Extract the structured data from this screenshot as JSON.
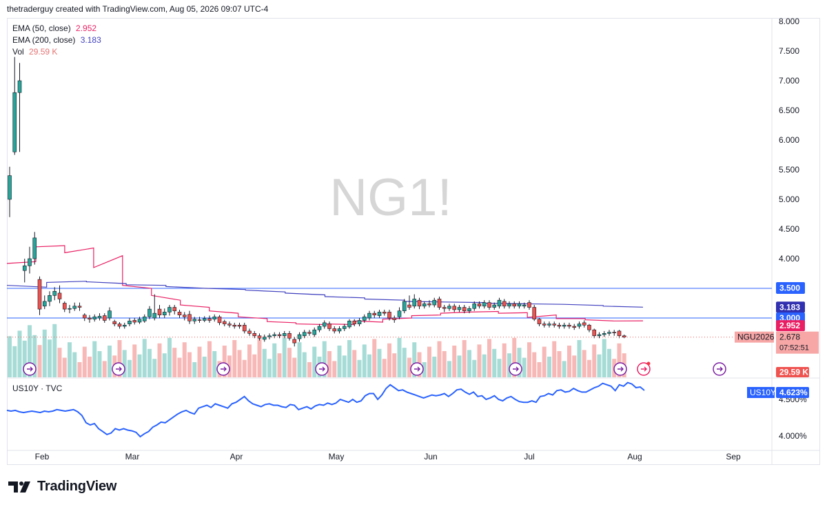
{
  "header": {
    "created_by": "thetraderguy created with TradingView.com, Aug 05, 2026 09:07 UTC-4"
  },
  "watermark": "NG1!",
  "legend": {
    "ema50": {
      "label": "EMA (50, close)",
      "value": "2.952",
      "color": "#e91e63"
    },
    "ema200": {
      "label": "EMA (200, close)",
      "value": "3.183",
      "color": "#3f3fbf"
    },
    "vol": {
      "label": "Vol",
      "value": "29.59 K",
      "color": "#e57373"
    }
  },
  "lower_pane": {
    "label": "US10Y · TVC",
    "tag": "US10Y",
    "value": "4.623%"
  },
  "price_tags": {
    "level_3500": "3.500",
    "ema200": "3.183",
    "level_3000": "3.000",
    "ema50": "2.952",
    "symbol": "NGU2026",
    "last": "2.678",
    "countdown": "07:52:51",
    "volume": "29.59 K"
  },
  "brand": {
    "name": "TradingView"
  },
  "colors": {
    "up": "#26a69a",
    "down": "#ef5350",
    "ema50": "#e91e63",
    "ema200": "#3f3fbf",
    "hline": "#2962ff",
    "us10y": "#2962ff",
    "event": "#7b1fa2"
  },
  "events": [
    "dividend",
    "dividend",
    "dividend",
    "dividend",
    "dividend",
    "dividend",
    "dividend",
    "earnings",
    "dividend"
  ],
  "chart_data": [
    {
      "type": "candlestick",
      "symbol": "NG1!",
      "y_ticks": [
        "8.000",
        "7.500",
        "7.000",
        "6.500",
        "6.000",
        "5.500",
        "5.000",
        "4.500",
        "4.000"
      ],
      "ylim": [
        2.1,
        8.1
      ],
      "x_ticks": [
        "Feb",
        "Mar",
        "Apr",
        "May",
        "Jun",
        "Jul",
        "Aug",
        "Sep"
      ],
      "horizontal_lines": [
        3.5,
        3.0
      ],
      "candles": [
        [
          5.0,
          5.4,
          5.55,
          4.7
        ],
        [
          5.8,
          6.8,
          7.4,
          5.75
        ],
        [
          6.8,
          7.0,
          7.3,
          5.8
        ],
        [
          3.8,
          3.88,
          4.0,
          3.6
        ],
        [
          3.88,
          4.0,
          4.2,
          3.75
        ],
        [
          4.0,
          4.35,
          4.45,
          3.9
        ],
        [
          3.65,
          3.15,
          3.7,
          3.05
        ],
        [
          3.2,
          3.28,
          3.38,
          3.15
        ],
        [
          3.28,
          3.38,
          3.45,
          3.2
        ],
        [
          3.38,
          3.45,
          3.52,
          3.3
        ],
        [
          3.42,
          3.32,
          3.55,
          3.25
        ],
        [
          3.25,
          3.15,
          3.28,
          3.1
        ],
        [
          3.15,
          3.16,
          3.22,
          3.08
        ],
        [
          3.16,
          3.2,
          3.26,
          3.12
        ],
        [
          3.2,
          3.18,
          3.26,
          3.12
        ],
        [
          3.05,
          3.0,
          3.08,
          2.95
        ],
        [
          3.0,
          2.98,
          3.05,
          2.92
        ],
        [
          2.98,
          3.02,
          3.06,
          2.94
        ],
        [
          3.0,
          3.03,
          3.08,
          2.96
        ],
        [
          3.04,
          2.96,
          3.08,
          2.92
        ],
        [
          3.0,
          3.12,
          3.18,
          2.96
        ],
        [
          2.94,
          2.9,
          2.97,
          2.86
        ],
        [
          2.9,
          2.86,
          2.93,
          2.82
        ],
        [
          2.86,
          2.88,
          2.92,
          2.82
        ],
        [
          2.9,
          2.95,
          3.0,
          2.86
        ],
        [
          2.96,
          2.93,
          3.0,
          2.89
        ],
        [
          2.93,
          2.98,
          3.02,
          2.9
        ],
        [
          2.95,
          3.02,
          3.06,
          2.92
        ],
        [
          3.02,
          3.15,
          3.2,
          2.98
        ],
        [
          3.0,
          3.08,
          3.4,
          2.96
        ],
        [
          3.15,
          3.05,
          3.22,
          3.0
        ],
        [
          3.05,
          3.1,
          3.16,
          3.0
        ],
        [
          3.1,
          3.18,
          3.22,
          3.04
        ],
        [
          3.18,
          3.12,
          3.22,
          3.06
        ],
        [
          3.1,
          3.05,
          3.14,
          3.0
        ],
        [
          3.05,
          3.02,
          3.1,
          2.96
        ],
        [
          3.06,
          2.95,
          3.12,
          2.9
        ],
        [
          2.95,
          2.98,
          3.02,
          2.9
        ],
        [
          2.97,
          2.96,
          3.02,
          2.92
        ],
        [
          2.96,
          2.99,
          3.03,
          2.93
        ],
        [
          2.99,
          2.96,
          3.04,
          2.92
        ],
        [
          2.98,
          3.02,
          3.06,
          2.94
        ],
        [
          3.02,
          2.92,
          3.05,
          2.88
        ],
        [
          2.94,
          2.9,
          2.97,
          2.86
        ],
        [
          2.9,
          2.88,
          2.94,
          2.84
        ],
        [
          2.88,
          2.86,
          2.92,
          2.82
        ],
        [
          2.88,
          2.86,
          2.92,
          2.82
        ],
        [
          2.88,
          2.78,
          2.92,
          2.74
        ],
        [
          2.78,
          2.74,
          2.82,
          2.7
        ],
        [
          2.74,
          2.7,
          2.78,
          2.66
        ],
        [
          2.7,
          2.66,
          2.74,
          2.62
        ],
        [
          2.64,
          2.68,
          2.72,
          2.6
        ],
        [
          2.68,
          2.7,
          2.74,
          2.64
        ],
        [
          2.7,
          2.72,
          2.76,
          2.66
        ],
        [
          2.72,
          2.7,
          2.76,
          2.66
        ],
        [
          2.7,
          2.74,
          2.78,
          2.66
        ],
        [
          2.74,
          2.66,
          2.78,
          2.62
        ],
        [
          2.64,
          2.58,
          2.68,
          2.52
        ],
        [
          2.65,
          2.72,
          2.76,
          2.6
        ],
        [
          2.7,
          2.76,
          2.8,
          2.66
        ],
        [
          2.76,
          2.74,
          2.8,
          2.7
        ],
        [
          2.72,
          2.8,
          2.84,
          2.68
        ],
        [
          2.8,
          2.86,
          2.9,
          2.76
        ],
        [
          2.86,
          2.92,
          2.96,
          2.82
        ],
        [
          2.9,
          2.82,
          2.94,
          2.78
        ],
        [
          2.82,
          2.78,
          2.86,
          2.74
        ],
        [
          2.78,
          2.82,
          2.86,
          2.74
        ],
        [
          2.82,
          2.86,
          2.9,
          2.78
        ],
        [
          2.85,
          2.95,
          2.98,
          2.82
        ],
        [
          2.95,
          2.9,
          2.98,
          2.86
        ],
        [
          2.9,
          2.96,
          3.0,
          2.86
        ],
        [
          2.96,
          3.02,
          3.06,
          2.92
        ],
        [
          3.0,
          3.08,
          3.12,
          2.96
        ],
        [
          3.08,
          3.05,
          3.12,
          3.0
        ],
        [
          3.04,
          3.1,
          3.14,
          3.0
        ],
        [
          3.1,
          3.08,
          3.14,
          3.04
        ],
        [
          3.1,
          3.0,
          3.14,
          2.96
        ],
        [
          3.0,
          2.97,
          3.04,
          2.92
        ],
        [
          3.02,
          3.12,
          3.18,
          2.98
        ],
        [
          3.12,
          3.28,
          3.32,
          3.08
        ],
        [
          3.22,
          3.18,
          3.38,
          3.14
        ],
        [
          3.2,
          3.32,
          3.4,
          3.16
        ],
        [
          3.3,
          3.2,
          3.34,
          3.15
        ],
        [
          3.2,
          3.24,
          3.28,
          3.16
        ],
        [
          3.24,
          3.22,
          3.3,
          3.18
        ],
        [
          3.22,
          3.3,
          3.34,
          3.18
        ],
        [
          3.32,
          3.18,
          3.36,
          3.14
        ],
        [
          3.18,
          3.16,
          3.22,
          3.1
        ],
        [
          3.16,
          3.2,
          3.24,
          3.12
        ],
        [
          3.2,
          3.14,
          3.24,
          3.1
        ],
        [
          3.14,
          3.18,
          3.22,
          3.1
        ],
        [
          3.18,
          3.12,
          3.22,
          3.08
        ],
        [
          3.12,
          3.16,
          3.2,
          3.08
        ],
        [
          3.16,
          3.24,
          3.28,
          3.12
        ],
        [
          3.24,
          3.2,
          3.28,
          3.16
        ],
        [
          3.2,
          3.26,
          3.3,
          3.16
        ],
        [
          3.26,
          3.18,
          3.3,
          3.14
        ],
        [
          3.18,
          3.22,
          3.26,
          3.14
        ],
        [
          3.2,
          3.3,
          3.34,
          3.16
        ],
        [
          3.28,
          3.2,
          3.32,
          3.16
        ],
        [
          3.2,
          3.24,
          3.28,
          3.16
        ],
        [
          3.24,
          3.2,
          3.28,
          3.16
        ],
        [
          3.2,
          3.24,
          3.28,
          3.16
        ],
        [
          3.2,
          3.22,
          3.26,
          3.16
        ],
        [
          3.26,
          3.18,
          3.3,
          3.14
        ],
        [
          3.18,
          2.98,
          3.22,
          2.95
        ],
        [
          2.98,
          2.9,
          3.0,
          2.86
        ],
        [
          2.9,
          2.88,
          2.94,
          2.84
        ],
        [
          2.88,
          2.9,
          2.94,
          2.84
        ],
        [
          2.9,
          2.88,
          2.94,
          2.84
        ],
        [
          2.88,
          2.86,
          2.92,
          2.82
        ],
        [
          2.86,
          2.88,
          2.92,
          2.82
        ],
        [
          2.88,
          2.86,
          2.92,
          2.82
        ],
        [
          2.86,
          2.84,
          2.9,
          2.8
        ],
        [
          2.86,
          2.9,
          2.94,
          2.82
        ],
        [
          2.92,
          2.88,
          2.96,
          2.84
        ],
        [
          2.88,
          2.8,
          2.9,
          2.76
        ],
        [
          2.8,
          2.7,
          2.82,
          2.66
        ],
        [
          2.7,
          2.72,
          2.76,
          2.66
        ],
        [
          2.72,
          2.74,
          2.78,
          2.68
        ],
        [
          2.74,
          2.76,
          2.8,
          2.7
        ],
        [
          2.76,
          2.75,
          2.8,
          2.7
        ],
        [
          2.78,
          2.7,
          2.8,
          2.66
        ],
        [
          2.7,
          2.678,
          2.72,
          2.66
        ]
      ],
      "ema50": [
        [
          3.92,
          3.95
        ],
        [
          4.2,
          4.22
        ],
        [
          4.1,
          4.18
        ],
        [
          3.85,
          4.05
        ],
        [
          3.55,
          3.5
        ],
        [
          3.38,
          3.3
        ],
        [
          3.22,
          3.18
        ],
        [
          3.12,
          3.08
        ],
        [
          3.02,
          2.99
        ],
        [
          2.94,
          2.92
        ],
        [
          2.9,
          2.89
        ],
        [
          2.9,
          2.89
        ],
        [
          2.95,
          2.93
        ],
        [
          2.98,
          3.0
        ],
        [
          3.04,
          3.05
        ],
        [
          3.08,
          3.1
        ],
        [
          3.1,
          3.11
        ],
        [
          3.08,
          3.09
        ],
        [
          3.01,
          3.05
        ],
        [
          2.99,
          2.99
        ],
        [
          2.97,
          2.95
        ],
        [
          2.95,
          2.952
        ]
      ],
      "ema200": [
        [
          3.55,
          3.52
        ],
        [
          3.6,
          3.62
        ],
        [
          3.61,
          3.58
        ],
        [
          3.56,
          3.55
        ],
        [
          3.53,
          3.5
        ],
        [
          3.5,
          3.48
        ],
        [
          3.47,
          3.44
        ],
        [
          3.42,
          3.39
        ],
        [
          3.36,
          3.34
        ],
        [
          3.32,
          3.3
        ],
        [
          3.28,
          3.27
        ],
        [
          3.27,
          3.26
        ],
        [
          3.25,
          3.24
        ],
        [
          3.24,
          3.23
        ],
        [
          3.23,
          3.21
        ],
        [
          3.2,
          3.183
        ]
      ],
      "volume_last": 29.59
    },
    {
      "type": "line",
      "symbol": "US10Y",
      "y_ticks": [
        "4.500%",
        "4.000%"
      ],
      "ylim": [
        3.95,
        4.75
      ],
      "series": [
        {
          "name": "US10Y",
          "values": [
            4.35,
            4.34,
            4.35,
            4.33,
            4.32,
            4.33,
            4.34,
            4.33,
            4.32,
            4.34,
            4.33,
            4.34,
            4.36,
            4.35,
            4.34,
            4.35,
            4.36,
            4.33,
            4.28,
            4.18,
            4.15,
            4.17,
            4.1,
            4.06,
            4.02,
            4.04,
            4.1,
            4.08,
            4.1,
            4.08,
            4.07,
            4.05,
            3.99,
            4.03,
            4.06,
            4.12,
            4.15,
            4.19,
            4.18,
            4.22,
            4.26,
            4.3,
            4.33,
            4.35,
            4.32,
            4.3,
            4.38,
            4.4,
            4.42,
            4.39,
            4.44,
            4.42,
            4.4,
            4.38,
            4.44,
            4.46,
            4.5,
            4.54,
            4.48,
            4.44,
            4.42,
            4.4,
            4.43,
            4.44,
            4.42,
            4.42,
            4.4,
            4.39,
            4.43,
            4.42,
            4.36,
            4.38,
            4.4,
            4.37,
            4.41,
            4.43,
            4.42,
            4.45,
            4.43,
            4.45,
            4.5,
            4.48,
            4.46,
            4.5,
            4.46,
            4.48,
            4.55,
            4.58,
            4.58,
            4.5,
            4.56,
            4.65,
            4.7,
            4.66,
            4.62,
            4.63,
            4.6,
            4.58,
            4.56,
            4.54,
            4.52,
            4.54,
            4.56,
            4.55,
            4.56,
            4.58,
            4.54,
            4.58,
            4.63,
            4.64,
            4.6,
            4.57,
            4.6,
            4.54,
            4.55,
            4.5,
            4.52,
            4.55,
            4.5,
            4.48,
            4.52,
            4.54,
            4.5,
            4.47,
            4.46,
            4.46,
            4.48,
            4.46,
            4.54,
            4.55,
            4.58,
            4.56,
            4.62,
            4.63,
            4.6,
            4.61,
            4.65,
            4.62,
            4.6,
            4.6,
            4.63,
            4.66,
            4.68,
            4.72,
            4.7,
            4.68,
            4.62,
            4.7,
            4.68,
            4.73,
            4.71,
            4.66,
            4.67,
            4.623
          ]
        }
      ]
    }
  ]
}
